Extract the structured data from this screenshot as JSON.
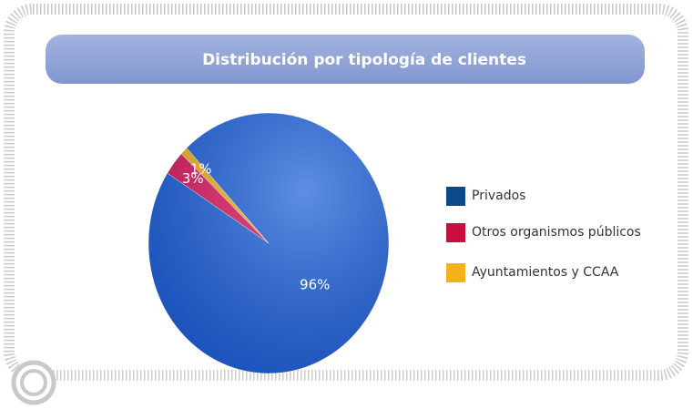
{
  "chart_data": {
    "type": "pie",
    "title": "Distribución por tipología de clientes",
    "categories": [
      "Privados",
      "Otros organismos públicos",
      "Ayuntamientos y CCAA"
    ],
    "values": [
      96,
      3,
      1
    ],
    "value_labels": [
      "96%",
      "3%",
      "1%"
    ],
    "colors": [
      "#1f63d8",
      "#e01a5c",
      "#f5b51c"
    ],
    "legend_colors": [
      "#0b4a8c",
      "#c8103e",
      "#f3b11c"
    ],
    "legend": "right"
  }
}
